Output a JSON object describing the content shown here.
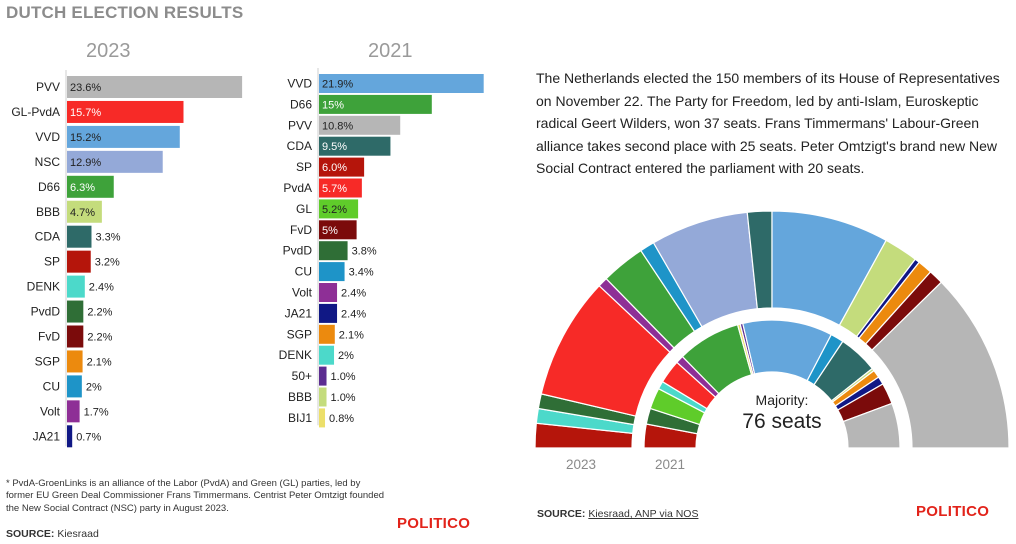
{
  "title": "DUTCH ELECTION RESULTS",
  "description": "The Netherlands elected the 150 members of its House of Representatives on November 22. The Party for Freedom, led by anti-Islam, Euroskeptic radical Geert Wilders, won 37 seats. Frans Timmermans' Labour-Green alliance takes second place with 25 seats. Peter Omtzigt's brand new New Social Contract entered the parliament with 20 seats.",
  "footnote": "* PvdA-GroenLinks is an alliance of the Labor (PvdA) and Green (GL) parties, led by former EU Green Deal Commissioner Frans Timmermans. Centrist Peter Omtzigt founded the New Social Contract (NSC) party in August 2023.",
  "source_left": {
    "label": "SOURCE:",
    "text": "Kiesraad"
  },
  "source_right": {
    "label": "SOURCE:",
    "text": "Kiesraad, ANP via NOS"
  },
  "brand": "POLITICO",
  "majority": {
    "label": "Majority:",
    "value": "76 seats"
  },
  "colors": {
    "accent": "#e2231a"
  },
  "chart_data": [
    {
      "type": "bar",
      "title": "2023",
      "categories": [
        "PVV",
        "GL-PvdA",
        "VVD",
        "NSC",
        "D66",
        "BBB",
        "CDA",
        "SP",
        "DENK",
        "PvdD",
        "FvD",
        "SGP",
        "CU",
        "Volt",
        "JA21"
      ],
      "values": [
        23.6,
        15.7,
        15.2,
        12.9,
        6.3,
        4.7,
        3.3,
        3.2,
        2.4,
        2.2,
        2.2,
        2.1,
        2,
        1.7,
        0.7
      ],
      "labels": [
        "23.6%",
        "15.7%",
        "15.2%",
        "12.9%",
        "6.3%",
        "4.7%",
        "3.3%",
        "3.2%",
        "2.4%",
        "2.2%",
        "2.2%",
        "2.1%",
        "2%",
        "1.7%",
        "0.7%"
      ],
      "colors": [
        "#b6b6b6",
        "#f72a27",
        "#64a6dc",
        "#94a9d8",
        "#3ea23a",
        "#c4dc7c",
        "#2e6a68",
        "#b5150b",
        "#4cd9ca",
        "#2f6e36",
        "#7b0b0b",
        "#ec8a0e",
        "#1e94c8",
        "#8e2f96",
        "#101885"
      ]
    },
    {
      "type": "bar",
      "title": "2021",
      "categories": [
        "VVD",
        "D66",
        "PVV",
        "CDA",
        "SP",
        "PvdA",
        "GL",
        "FvD",
        "PvdD",
        "CU",
        "Volt",
        "JA21",
        "SGP",
        "DENK",
        "50+",
        "BBB",
        "BIJ1"
      ],
      "values": [
        21.9,
        15,
        10.8,
        9.5,
        6,
        5.7,
        5.2,
        5,
        3.8,
        3.4,
        2.4,
        2.4,
        2.1,
        2,
        1,
        1,
        0.8
      ],
      "labels": [
        "21.9%",
        "15%",
        "10.8%",
        "9.5%",
        "6.0%",
        "5.7%",
        "5.2%",
        "5%",
        "3.8%",
        "3.4%",
        "2.4%",
        "2.4%",
        "2.1%",
        "2%",
        "1.0%",
        "1.0%",
        "0.8%"
      ],
      "colors": [
        "#64a6dc",
        "#3ea23a",
        "#b6b6b6",
        "#2e6a68",
        "#b5150b",
        "#f72a27",
        "#5fcc2a",
        "#7b0b0b",
        "#2f6e36",
        "#1e94c8",
        "#8e2f96",
        "#101885",
        "#ec8a0e",
        "#4cd9ca",
        "#5c2d91",
        "#c4dc7c",
        "#ecdf6a"
      ]
    },
    {
      "type": "pie",
      "title": "2023",
      "categories": [
        "SP",
        "DENK",
        "PvdD",
        "GL-PvdA",
        "Volt",
        "D66",
        "CU",
        "NSC",
        "CDA",
        "VVD",
        "BBB",
        "JA21",
        "SGP",
        "FvD",
        "PVV"
      ],
      "values": [
        5,
        3,
        3,
        25,
        2,
        9,
        3,
        20,
        5,
        24,
        7,
        1,
        3,
        3,
        37
      ],
      "colors": [
        "#b5150b",
        "#4cd9ca",
        "#2f6e36",
        "#f72a27",
        "#8e2f96",
        "#3ea23a",
        "#1e94c8",
        "#94a9d8",
        "#2e6a68",
        "#64a6dc",
        "#c4dc7c",
        "#101885",
        "#ec8a0e",
        "#7b0b0b",
        "#b6b6b6"
      ]
    },
    {
      "type": "pie",
      "title": "2021",
      "categories": [
        "SP",
        "PvdD",
        "GL",
        "DENK",
        "PvdA",
        "Volt",
        "D66",
        "BIJ1",
        "50+",
        "VVD",
        "CU",
        "CDA",
        "BBB",
        "SGP",
        "JA21",
        "FvD",
        "PVV"
      ],
      "values": [
        9,
        6,
        8,
        3,
        9,
        3,
        24,
        1,
        1,
        34,
        5,
        15,
        1,
        3,
        3,
        8,
        17
      ],
      "colors": [
        "#b5150b",
        "#2f6e36",
        "#5fcc2a",
        "#4cd9ca",
        "#f72a27",
        "#8e2f96",
        "#3ea23a",
        "#ecdf6a",
        "#5c2d91",
        "#64a6dc",
        "#1e94c8",
        "#2e6a68",
        "#c4dc7c",
        "#ec8a0e",
        "#101885",
        "#7b0b0b",
        "#b6b6b6"
      ]
    }
  ]
}
